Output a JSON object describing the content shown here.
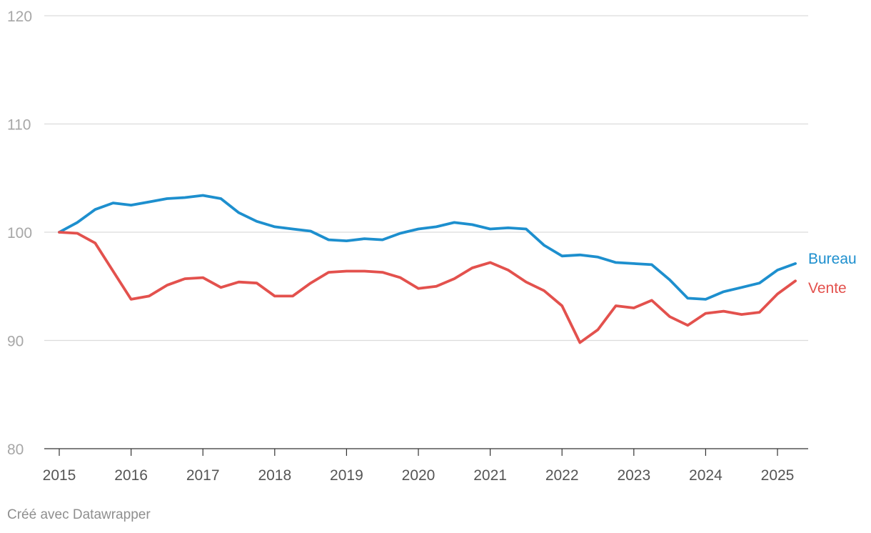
{
  "footer": "Créé avec Datawrapper",
  "colors": {
    "Bureau": "#1d8fce",
    "Vente": "#e3514d",
    "grid": "#dcdcdc"
  },
  "chart_data": {
    "type": "line",
    "title": "",
    "xlabel": "",
    "ylabel": "",
    "ylim": [
      80,
      120
    ],
    "xlim": [
      2015,
      2025.5
    ],
    "yticks": [
      80,
      90,
      100,
      110,
      120
    ],
    "xticks": [
      "2015",
      "2016",
      "2017",
      "2018",
      "2019",
      "2020",
      "2021",
      "2022",
      "2023",
      "2024",
      "2025"
    ],
    "grid": true,
    "legend": "direct labels at right end of lines",
    "x": [
      "2015-Q1",
      "2015-Q2",
      "2015-Q3",
      "2015-Q4",
      "2016-Q1",
      "2016-Q2",
      "2016-Q3",
      "2016-Q4",
      "2017-Q1",
      "2017-Q2",
      "2017-Q3",
      "2017-Q4",
      "2018-Q1",
      "2018-Q2",
      "2018-Q3",
      "2018-Q4",
      "2019-Q1",
      "2019-Q2",
      "2019-Q3",
      "2019-Q4",
      "2020-Q1",
      "2020-Q2",
      "2020-Q3",
      "2020-Q4",
      "2021-Q1",
      "2021-Q2",
      "2021-Q3",
      "2021-Q4",
      "2022-Q1",
      "2022-Q2",
      "2022-Q3",
      "2022-Q4",
      "2023-Q1",
      "2023-Q2",
      "2023-Q3",
      "2023-Q4",
      "2024-Q1",
      "2024-Q2",
      "2024-Q3",
      "2024-Q4",
      "2025-Q1",
      "2025-Q2"
    ],
    "series": [
      {
        "name": "Bureau",
        "color": "#1d8fce",
        "values": [
          100,
          100.9,
          102.1,
          102.7,
          102.5,
          102.8,
          103.1,
          103.2,
          103.4,
          103.1,
          101.8,
          101.0,
          100.5,
          100.3,
          100.1,
          99.3,
          99.2,
          99.4,
          99.3,
          99.9,
          100.3,
          100.5,
          100.9,
          100.7,
          100.3,
          100.4,
          100.3,
          98.8,
          97.8,
          97.9,
          97.7,
          97.2,
          97.1,
          97.0,
          95.6,
          93.9,
          93.8,
          94.5,
          94.9,
          95.3,
          96.5,
          97.1
        ]
      },
      {
        "name": "Vente",
        "color": "#e3514d",
        "values": [
          100,
          99.9,
          99.0,
          96.4,
          93.8,
          94.1,
          95.1,
          95.7,
          95.8,
          94.9,
          95.4,
          95.3,
          94.1,
          94.1,
          95.3,
          96.3,
          96.4,
          96.4,
          96.3,
          95.8,
          94.8,
          95.0,
          95.7,
          96.7,
          97.2,
          96.5,
          95.4,
          94.6,
          93.2,
          89.8,
          91.0,
          93.2,
          93.0,
          93.7,
          92.2,
          91.4,
          92.5,
          92.7,
          92.4,
          92.6,
          94.3,
          95.5
        ]
      }
    ]
  }
}
